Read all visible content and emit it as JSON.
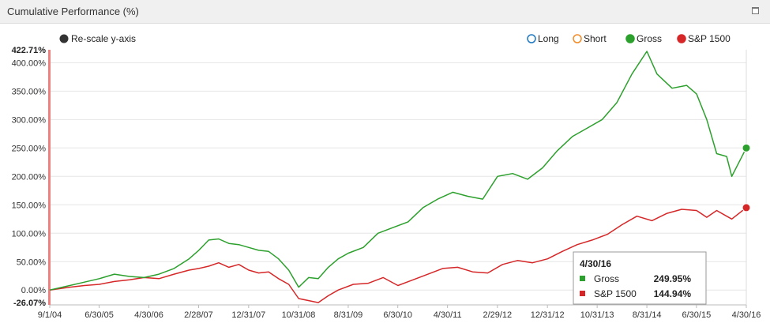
{
  "panel": {
    "title": "Cumulative Performance (%)",
    "maximize_icon": "maximize-icon"
  },
  "rescale": {
    "label": "Re-scale y-axis",
    "color": "#333333"
  },
  "legend": [
    {
      "name": "Long",
      "color": "#1f78c1",
      "filled": false
    },
    {
      "name": "Short",
      "color": "#f28c28",
      "filled": false
    },
    {
      "name": "Gross",
      "color": "#2ca02c",
      "filled": true
    },
    {
      "name": "S&P 1500",
      "color": "#d62728",
      "filled": true
    }
  ],
  "tooltip": {
    "date": "4/30/16",
    "rows": [
      {
        "name": "Gross",
        "value": "249.95%",
        "color": "#2ca02c"
      },
      {
        "name": "S&P 1500",
        "value": "144.94%",
        "color": "#d62728"
      }
    ]
  },
  "chart_data": {
    "type": "line",
    "title": "Cumulative Performance (%)",
    "xlabel": "",
    "ylabel": "",
    "x_range": [
      "2004-09-01",
      "2016-04-30"
    ],
    "ylim": [
      -26.07,
      422.71
    ],
    "y_extreme_labels": [
      "422.71%",
      "-26.07%"
    ],
    "y_ticks": [
      "0.00%",
      "50.00%",
      "100.00%",
      "150.00%",
      "200.00%",
      "250.00%",
      "300.00%",
      "350.00%",
      "400.00%"
    ],
    "x_ticks": [
      {
        "label": "9/1/04",
        "date": "2004-09-01"
      },
      {
        "label": "6/30/05",
        "date": "2005-06-30"
      },
      {
        "label": "4/30/06",
        "date": "2006-04-30"
      },
      {
        "label": "2/28/07",
        "date": "2007-02-28"
      },
      {
        "label": "12/31/07",
        "date": "2007-12-31"
      },
      {
        "label": "10/31/08",
        "date": "2008-10-31"
      },
      {
        "label": "8/31/09",
        "date": "2009-08-31"
      },
      {
        "label": "6/30/10",
        "date": "2010-06-30"
      },
      {
        "label": "4/30/11",
        "date": "2011-04-30"
      },
      {
        "label": "2/29/12",
        "date": "2012-02-29"
      },
      {
        "label": "12/31/12",
        "date": "2012-12-31"
      },
      {
        "label": "10/31/13",
        "date": "2013-10-31"
      },
      {
        "label": "8/31/14",
        "date": "2014-08-31"
      },
      {
        "label": "6/30/15",
        "date": "2015-06-30"
      },
      {
        "label": "4/30/16",
        "date": "2016-04-30"
      }
    ],
    "grid": true,
    "legend_position": "top-right",
    "series": [
      {
        "name": "Gross",
        "color": "#2ca02c",
        "points": [
          [
            "2004-09-01",
            0
          ],
          [
            "2005-01-01",
            8
          ],
          [
            "2005-04-01",
            14
          ],
          [
            "2005-07-01",
            20
          ],
          [
            "2005-10-01",
            28
          ],
          [
            "2006-01-01",
            24
          ],
          [
            "2006-04-01",
            22
          ],
          [
            "2006-07-01",
            28
          ],
          [
            "2006-10-01",
            38
          ],
          [
            "2007-01-01",
            55
          ],
          [
            "2007-03-01",
            70
          ],
          [
            "2007-05-01",
            88
          ],
          [
            "2007-07-01",
            90
          ],
          [
            "2007-09-01",
            82
          ],
          [
            "2007-11-01",
            80
          ],
          [
            "2008-01-01",
            75
          ],
          [
            "2008-03-01",
            70
          ],
          [
            "2008-05-01",
            68
          ],
          [
            "2008-07-01",
            55
          ],
          [
            "2008-09-01",
            35
          ],
          [
            "2008-11-01",
            5
          ],
          [
            "2009-01-01",
            22
          ],
          [
            "2009-03-01",
            20
          ],
          [
            "2009-05-01",
            40
          ],
          [
            "2009-07-01",
            55
          ],
          [
            "2009-09-01",
            65
          ],
          [
            "2009-12-01",
            75
          ],
          [
            "2010-03-01",
            100
          ],
          [
            "2010-06-01",
            110
          ],
          [
            "2010-09-01",
            120
          ],
          [
            "2010-12-01",
            145
          ],
          [
            "2011-03-01",
            160
          ],
          [
            "2011-06-01",
            172
          ],
          [
            "2011-09-01",
            165
          ],
          [
            "2011-12-01",
            160
          ],
          [
            "2012-03-01",
            200
          ],
          [
            "2012-06-01",
            205
          ],
          [
            "2012-09-01",
            195
          ],
          [
            "2012-12-01",
            215
          ],
          [
            "2013-03-01",
            245
          ],
          [
            "2013-06-01",
            270
          ],
          [
            "2013-09-01",
            285
          ],
          [
            "2013-12-01",
            300
          ],
          [
            "2014-03-01",
            330
          ],
          [
            "2014-06-01",
            380
          ],
          [
            "2014-08-31",
            420
          ],
          [
            "2014-11-01",
            380
          ],
          [
            "2015-02-01",
            355
          ],
          [
            "2015-05-01",
            360
          ],
          [
            "2015-07-01",
            345
          ],
          [
            "2015-09-01",
            300
          ],
          [
            "2015-11-01",
            240
          ],
          [
            "2016-01-01",
            235
          ],
          [
            "2016-02-01",
            200
          ],
          [
            "2016-04-30",
            249.95
          ]
        ]
      },
      {
        "name": "S&P 1500",
        "color": "#d62728",
        "points": [
          [
            "2004-09-01",
            0
          ],
          [
            "2005-01-01",
            5
          ],
          [
            "2005-04-01",
            8
          ],
          [
            "2005-07-01",
            10
          ],
          [
            "2005-10-01",
            15
          ],
          [
            "2006-01-01",
            18
          ],
          [
            "2006-04-01",
            22
          ],
          [
            "2006-07-01",
            20
          ],
          [
            "2006-10-01",
            28
          ],
          [
            "2007-01-01",
            35
          ],
          [
            "2007-03-01",
            38
          ],
          [
            "2007-05-01",
            42
          ],
          [
            "2007-07-01",
            48
          ],
          [
            "2007-09-01",
            40
          ],
          [
            "2007-11-01",
            45
          ],
          [
            "2008-01-01",
            35
          ],
          [
            "2008-03-01",
            30
          ],
          [
            "2008-05-01",
            32
          ],
          [
            "2008-07-01",
            20
          ],
          [
            "2008-09-01",
            10
          ],
          [
            "2008-11-01",
            -15
          ],
          [
            "2009-03-01",
            -22
          ],
          [
            "2009-05-01",
            -10
          ],
          [
            "2009-07-01",
            0
          ],
          [
            "2009-10-01",
            10
          ],
          [
            "2010-01-01",
            12
          ],
          [
            "2010-04-01",
            22
          ],
          [
            "2010-07-01",
            8
          ],
          [
            "2010-10-01",
            18
          ],
          [
            "2011-01-01",
            28
          ],
          [
            "2011-04-01",
            38
          ],
          [
            "2011-07-01",
            40
          ],
          [
            "2011-10-01",
            32
          ],
          [
            "2012-01-01",
            30
          ],
          [
            "2012-04-01",
            45
          ],
          [
            "2012-07-01",
            52
          ],
          [
            "2012-10-01",
            48
          ],
          [
            "2013-01-01",
            55
          ],
          [
            "2013-04-01",
            68
          ],
          [
            "2013-07-01",
            80
          ],
          [
            "2013-10-01",
            88
          ],
          [
            "2014-01-01",
            98
          ],
          [
            "2014-04-01",
            115
          ],
          [
            "2014-07-01",
            130
          ],
          [
            "2014-10-01",
            122
          ],
          [
            "2015-01-01",
            135
          ],
          [
            "2015-04-01",
            142
          ],
          [
            "2015-07-01",
            140
          ],
          [
            "2015-09-01",
            128
          ],
          [
            "2015-11-01",
            140
          ],
          [
            "2016-01-01",
            130
          ],
          [
            "2016-02-01",
            125
          ],
          [
            "2016-04-30",
            144.94
          ]
        ]
      }
    ]
  }
}
